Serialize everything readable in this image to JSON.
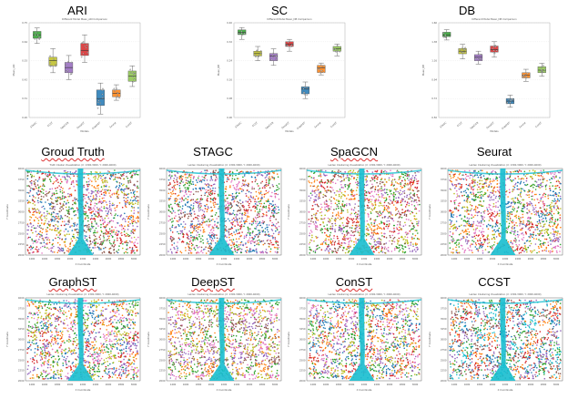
{
  "box_titles": [
    "ARI",
    "SC",
    "DB"
  ],
  "box_subtitles": [
    "Different Model Mean_ARI Comparison",
    "Different Model Mean_DB Comparison",
    "Different Model Mean_DB Comparison"
  ],
  "box_xlabel": "Models",
  "box_ylabels": [
    "Mean_ARI",
    "Mean_DB",
    "Mean_DB"
  ],
  "model_names": [
    "STAGC",
    "CCST",
    "SpaGCN",
    "DeepST",
    "GraphST",
    "Seurat",
    "ConST"
  ],
  "panels_row1": [
    {
      "title": "Groud Truth",
      "plot_title": "Truth Cluster Visualization (X: 1300-3000, Y: 2000-4000)"
    },
    {
      "title": "STAGC",
      "plot_title": "Leiden Clustering Visualization (X: 1300-3000, Y: 2000-4000)"
    },
    {
      "title": "SpaGCN",
      "plot_title": "Leiden Clustering Visualization (X: 1300-3000, Y: 2000-4000)"
    },
    {
      "title": "Seurat",
      "plot_title": "Leiden Clustering Visualization (X: 1300-3000, Y: 2000-4000)"
    }
  ],
  "panels_row2": [
    {
      "title": "GraphST",
      "plot_title": "Leiden Clustering Visualization (X: 1300-3000, Y: 2000-4000)"
    },
    {
      "title": "DeepST",
      "plot_title": "Leiden Clustering Visualization (X: 1300-3000, Y: 2000-4000)"
    },
    {
      "title": "ConST",
      "plot_title": "Leiden Clustering Visualization (X: 1300-3000, Y: 2000-4000)"
    },
    {
      "title": "CCST",
      "plot_title": "Leiden Clustering Visualization (X: 1300-3000, Y: 2000-4000)"
    }
  ],
  "scatter_xlabel": "X Coordinate",
  "scatter_ylabel": "Y Coordinate",
  "scatter_xticks": [
    "1400",
    "1600",
    "1800",
    "2000",
    "2200",
    "2400",
    "2600",
    "2800",
    "3000"
  ],
  "scatter_yticks": [
    "4000",
    "3750",
    "3500",
    "3250",
    "3000",
    "2750",
    "2500",
    "2250",
    "2000"
  ],
  "palettes": {
    "Groud Truth": [
      "#2ca02c",
      "#9467bd",
      "#1f77b4",
      "#d62728",
      "#ff7f0e",
      "#8c564b",
      "#e377c2",
      "#bcbd22"
    ],
    "STAGC": [
      "#e377c2",
      "#9467bd",
      "#2ca02c",
      "#8c564b",
      "#ff7f0e",
      "#1f77b4",
      "#d62728"
    ],
    "SpaGCN": [
      "#ff7f0e",
      "#8c564b",
      "#2ca02c",
      "#d62728",
      "#bcbd22",
      "#9467bd",
      "#e377c2"
    ],
    "Seurat": [
      "#bcbd22",
      "#9467bd",
      "#1f77b4",
      "#ff7f0e",
      "#d62728",
      "#2ca02c",
      "#e377c2"
    ],
    "GraphST": [
      "#2ca02c",
      "#d62728",
      "#e377c2",
      "#1f77b4",
      "#ff7f0e",
      "#bcbd22",
      "#9467bd"
    ],
    "DeepST": [
      "#8c564b",
      "#bcbd22",
      "#ff7f0e",
      "#9467bd",
      "#e377c2",
      "#2ca02c"
    ],
    "ConST": [
      "#bcbd22",
      "#ff7f0e",
      "#2ca02c",
      "#d62728",
      "#9467bd",
      "#1f77b4",
      "#e377c2"
    ],
    "CCST": [
      "#17becf",
      "#d62728",
      "#2ca02c",
      "#ff7f0e",
      "#9467bd",
      "#8c564b",
      "#1f77b4"
    ]
  },
  "channel_color": "#17becf",
  "chart_data": [
    {
      "type": "box",
      "title": "ARI",
      "subtitle": "Different Model Mean_ARI Comparison",
      "xlabel": "Models",
      "ylabel": "Mean_ARI",
      "categories": [
        "STAGC",
        "CCST",
        "SpaGCN",
        "DeepST",
        "GraphST",
        "Seurat",
        "ConST"
      ],
      "colors": [
        "#2ca02c",
        "#bcbd22",
        "#9467bd",
        "#d62728",
        "#1f77b4",
        "#ff7f0e",
        "#8bc34a"
      ],
      "ylim": [
        0.2,
        0.75
      ],
      "boxes": [
        {
          "min": 0.63,
          "q1": 0.66,
          "median": 0.68,
          "q3": 0.7,
          "max": 0.72
        },
        {
          "min": 0.46,
          "q1": 0.5,
          "median": 0.53,
          "q3": 0.55,
          "max": 0.6
        },
        {
          "min": 0.42,
          "q1": 0.46,
          "median": 0.49,
          "q3": 0.52,
          "max": 0.56
        },
        {
          "min": 0.52,
          "q1": 0.56,
          "median": 0.59,
          "q3": 0.63,
          "max": 0.68
        },
        {
          "min": 0.22,
          "q1": 0.27,
          "median": 0.31,
          "q3": 0.36,
          "max": 0.4
        },
        {
          "min": 0.3,
          "q1": 0.32,
          "median": 0.34,
          "q3": 0.36,
          "max": 0.39
        },
        {
          "min": 0.38,
          "q1": 0.41,
          "median": 0.44,
          "q3": 0.47,
          "max": 0.5
        }
      ]
    },
    {
      "type": "box",
      "title": "SC",
      "subtitle": "Different Model Mean_DB Comparison",
      "xlabel": "Models",
      "ylabel": "Mean_DB",
      "categories": [
        "STAGC",
        "CCST",
        "SpaGCN",
        "DeepST",
        "GraphST",
        "Seurat",
        "ConST"
      ],
      "colors": [
        "#2ca02c",
        "#bcbd22",
        "#9467bd",
        "#d62728",
        "#1f77b4",
        "#ff7f0e",
        "#8bc34a"
      ],
      "ylim": [
        0.0,
        0.4
      ],
      "boxes": [
        {
          "min": 0.33,
          "q1": 0.35,
          "median": 0.36,
          "q3": 0.37,
          "max": 0.38
        },
        {
          "min": 0.24,
          "q1": 0.26,
          "median": 0.27,
          "q3": 0.28,
          "max": 0.3
        },
        {
          "min": 0.22,
          "q1": 0.24,
          "median": 0.26,
          "q3": 0.27,
          "max": 0.29
        },
        {
          "min": 0.28,
          "q1": 0.3,
          "median": 0.31,
          "q3": 0.32,
          "max": 0.33
        },
        {
          "min": 0.08,
          "q1": 0.1,
          "median": 0.12,
          "q3": 0.13,
          "max": 0.15
        },
        {
          "min": 0.18,
          "q1": 0.19,
          "median": 0.21,
          "q3": 0.22,
          "max": 0.23
        },
        {
          "min": 0.26,
          "q1": 0.28,
          "median": 0.29,
          "q3": 0.3,
          "max": 0.31
        }
      ]
    },
    {
      "type": "box",
      "title": "DB",
      "subtitle": "Different Model Mean_DB Comparison",
      "xlabel": "Models",
      "ylabel": "Mean_DB",
      "categories": [
        "STAGC",
        "CCST",
        "SpaGCN",
        "DeepST",
        "GraphST",
        "Seurat",
        "ConST"
      ],
      "colors": [
        "#2ca02c",
        "#bcbd22",
        "#9467bd",
        "#d62728",
        "#1f77b4",
        "#ff7f0e",
        "#8bc34a"
      ],
      "ylim": [
        0.5,
        1.6
      ],
      "boxes": [
        {
          "min": 1.4,
          "q1": 1.44,
          "median": 1.46,
          "q3": 1.49,
          "max": 1.52
        },
        {
          "min": 1.18,
          "q1": 1.24,
          "median": 1.27,
          "q3": 1.3,
          "max": 1.35
        },
        {
          "min": 1.12,
          "q1": 1.16,
          "median": 1.2,
          "q3": 1.23,
          "max": 1.27
        },
        {
          "min": 1.2,
          "q1": 1.26,
          "median": 1.29,
          "q3": 1.33,
          "max": 1.38
        },
        {
          "min": 0.62,
          "q1": 0.66,
          "median": 0.69,
          "q3": 0.72,
          "max": 0.76
        },
        {
          "min": 0.92,
          "q1": 0.96,
          "median": 0.99,
          "q3": 1.02,
          "max": 1.06
        },
        {
          "min": 0.98,
          "q1": 1.02,
          "median": 1.05,
          "q3": 1.09,
          "max": 1.13
        }
      ]
    }
  ]
}
